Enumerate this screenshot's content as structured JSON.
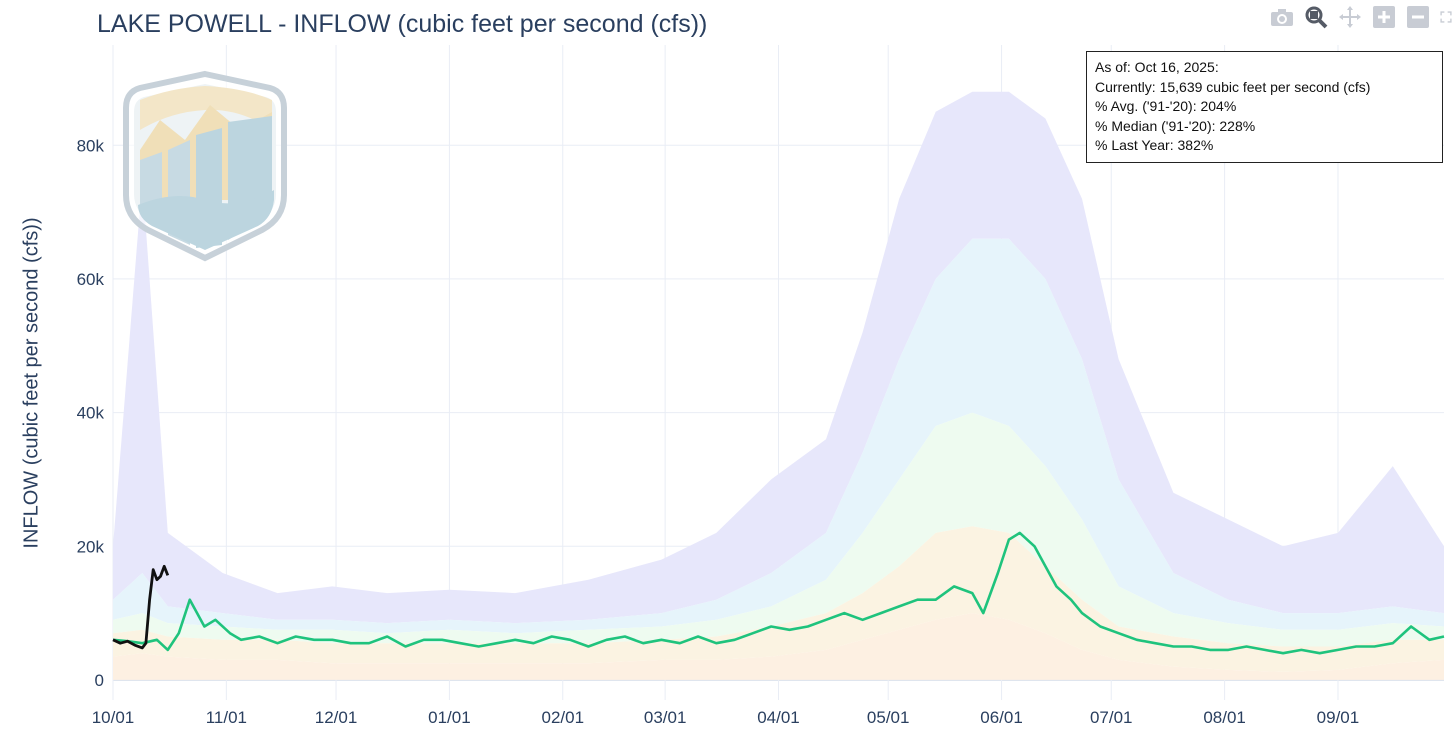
{
  "page": {
    "title": "LAKE POWELL - INFLOW (cubic feet per second (cfs))"
  },
  "info_box": {
    "lines": [
      "As of: Oct 16, 2025:",
      "Currently: 15,639 cubic feet per second (cfs)",
      "% Avg. ('91-'20): 204%",
      "% Median ('91-'20): 228%",
      "% Last Year: 382%"
    ]
  },
  "modebar": [
    "camera-icon",
    "zoom-icon",
    "pan-icon",
    "zoom-in-icon",
    "zoom-out-icon",
    "autoscale-icon"
  ],
  "colors": {
    "band_max": "#e7e7fb",
    "band_high": "#e6f4fb",
    "band_mid": "#eefbf0",
    "band_low": "#fbf3e2",
    "band_min": "#fdf0e2",
    "last_year": "#1fc37d",
    "current": "#111111",
    "grid": "#e9edf5"
  },
  "chart_data": {
    "type": "line",
    "title": "LAKE POWELL - INFLOW (cubic feet per second (cfs))",
    "ylabel": "INFLOW (cubic feet per second (cfs))",
    "xlabel": "",
    "ylim": [
      -3000,
      95000
    ],
    "y_ticks": [
      0,
      20000,
      40000,
      60000,
      80000
    ],
    "y_tick_labels": [
      "0",
      "20k",
      "40k",
      "60k",
      "80k"
    ],
    "x_ticks": [
      "10/01",
      "11/01",
      "12/01",
      "01/01",
      "02/01",
      "03/01",
      "04/01",
      "05/01",
      "06/01",
      "07/01",
      "08/01",
      "09/01"
    ],
    "x_tick_days": [
      0,
      31,
      61,
      92,
      123,
      151,
      182,
      212,
      243,
      273,
      304,
      335
    ],
    "xlim_days": [
      0,
      364
    ],
    "grid": true,
    "percentile_bands": {
      "days": [
        0,
        8,
        15,
        30,
        45,
        60,
        75,
        92,
        110,
        130,
        150,
        165,
        180,
        195,
        205,
        215,
        225,
        235,
        245,
        255,
        265,
        275,
        290,
        305,
        320,
        335,
        350,
        364
      ],
      "max": [
        20000,
        75000,
        22000,
        16000,
        13000,
        14000,
        13000,
        13500,
        13000,
        15000,
        18000,
        22000,
        30000,
        36000,
        52000,
        72000,
        85000,
        88000,
        88000,
        84000,
        72000,
        48000,
        28000,
        24000,
        20000,
        22000,
        32000,
        20000
      ],
      "high": [
        12000,
        16000,
        11000,
        10000,
        9000,
        9000,
        8500,
        9000,
        8500,
        9000,
        10000,
        12000,
        16000,
        22000,
        34000,
        48000,
        60000,
        66000,
        66000,
        60000,
        48000,
        30000,
        16000,
        12000,
        10000,
        10000,
        11000,
        10000
      ],
      "mid": [
        9000,
        10000,
        8500,
        8000,
        7500,
        7500,
        7000,
        7500,
        7000,
        7500,
        8000,
        9000,
        11000,
        15000,
        22000,
        30000,
        38000,
        40000,
        38000,
        32000,
        24000,
        14000,
        10000,
        8500,
        7500,
        7500,
        8500,
        8000
      ],
      "low": [
        7000,
        7500,
        6500,
        6000,
        6000,
        5500,
        5500,
        5500,
        5500,
        5500,
        6000,
        6500,
        8000,
        10000,
        13000,
        17000,
        22000,
        23000,
        22000,
        17000,
        12000,
        8000,
        6500,
        5500,
        5000,
        5000,
        6000,
        6000
      ],
      "min": [
        3500,
        4000,
        3500,
        3000,
        3000,
        2500,
        2500,
        2500,
        2500,
        2500,
        3000,
        3000,
        3500,
        4500,
        6000,
        7500,
        9000,
        10000,
        9000,
        7000,
        4500,
        3000,
        2000,
        1500,
        1200,
        1500,
        2500,
        3000
      ]
    },
    "series": [
      {
        "name": "",
        "color": "#1fc37d",
        "x_days": [
          0,
          4,
          8,
          12,
          15,
          18,
          21,
          25,
          28,
          32,
          35,
          40,
          45,
          50,
          55,
          60,
          65,
          70,
          75,
          80,
          85,
          90,
          95,
          100,
          105,
          110,
          115,
          120,
          125,
          130,
          135,
          140,
          145,
          150,
          155,
          160,
          165,
          170,
          175,
          180,
          185,
          190,
          195,
          200,
          205,
          210,
          215,
          220,
          225,
          230,
          235,
          238,
          242,
          245,
          248,
          252,
          255,
          258,
          262,
          265,
          270,
          275,
          280,
          285,
          290,
          295,
          300,
          305,
          310,
          315,
          320,
          325,
          330,
          335,
          340,
          345,
          350,
          355,
          360,
          364
        ],
        "values": [
          6000,
          5800,
          5500,
          6000,
          4500,
          7000,
          12000,
          8000,
          9000,
          7000,
          6000,
          6500,
          5500,
          6500,
          6000,
          6000,
          5500,
          5500,
          6500,
          5000,
          6000,
          6000,
          5500,
          5000,
          5500,
          6000,
          5500,
          6500,
          6000,
          5000,
          6000,
          6500,
          5500,
          6000,
          5500,
          6500,
          5500,
          6000,
          7000,
          8000,
          7500,
          8000,
          9000,
          10000,
          9000,
          10000,
          11000,
          12000,
          12000,
          14000,
          13000,
          10000,
          16000,
          21000,
          22000,
          20000,
          17000,
          14000,
          12000,
          10000,
          8000,
          7000,
          6000,
          5500,
          5000,
          5000,
          4500,
          4500,
          5000,
          4500,
          4000,
          4500,
          4000,
          4500,
          5000,
          5000,
          5500,
          8000,
          6000,
          6500
        ]
      },
      {
        "name": "",
        "color": "#111111",
        "x_days": [
          0,
          2,
          4,
          6,
          8,
          9,
          10,
          11,
          12,
          13,
          14,
          15
        ],
        "values": [
          6000,
          5500,
          5800,
          5200,
          4800,
          5500,
          12000,
          16500,
          15000,
          15500,
          17000,
          15639
        ]
      }
    ]
  }
}
